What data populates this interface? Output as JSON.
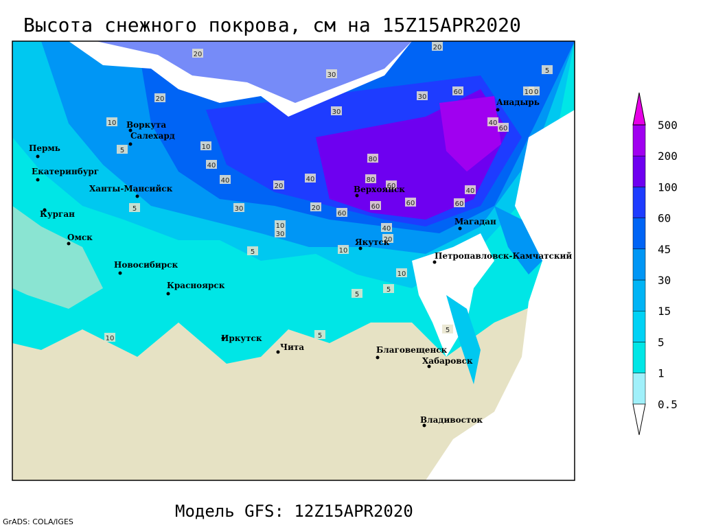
{
  "title": "Высота снежного покрова, см на 15Z15APR2020",
  "footer": "Модель GFS: 12Z15APR2020",
  "credit": "GrADS: COLA/IGES",
  "cities": [
    "Пермь",
    "Екатеринбург",
    "Ханты-Мансийск",
    "Воркута",
    "Салехард",
    "Курган",
    "Омск",
    "Новосибирск",
    "Красноярск",
    "Иркутск",
    "Чита",
    "Благовещенск",
    "Хабаровск",
    "Владивосток",
    "Якутск",
    "Верхоянск",
    "Магадан",
    "Петропавловск-Камчатский",
    "Анадырь"
  ],
  "contour_labels": [
    "20",
    "30",
    "20",
    "30",
    "30",
    "20",
    "30",
    "60",
    "10",
    "40",
    "60",
    "10",
    "5",
    "10",
    "5",
    "40",
    "40",
    "20",
    "30",
    "40",
    "80",
    "20",
    "60",
    "80",
    "60",
    "60",
    "40",
    "10",
    "5",
    "10",
    "5",
    "5",
    "5",
    "5",
    "10",
    "5",
    "10",
    "20",
    "30",
    "40",
    "60",
    "60"
  ],
  "colorbar": {
    "levels": [
      0.5,
      1,
      5,
      15,
      30,
      45,
      60,
      100,
      200,
      500
    ],
    "colors": [
      "#ffffff",
      "#a0f0fa",
      "#00e6e6",
      "#00d2f5",
      "#00b4f5",
      "#0096f5",
      "#0064f5",
      "#1e3cff",
      "#6e00f0",
      "#a000f0",
      "#e600e6"
    ]
  }
}
